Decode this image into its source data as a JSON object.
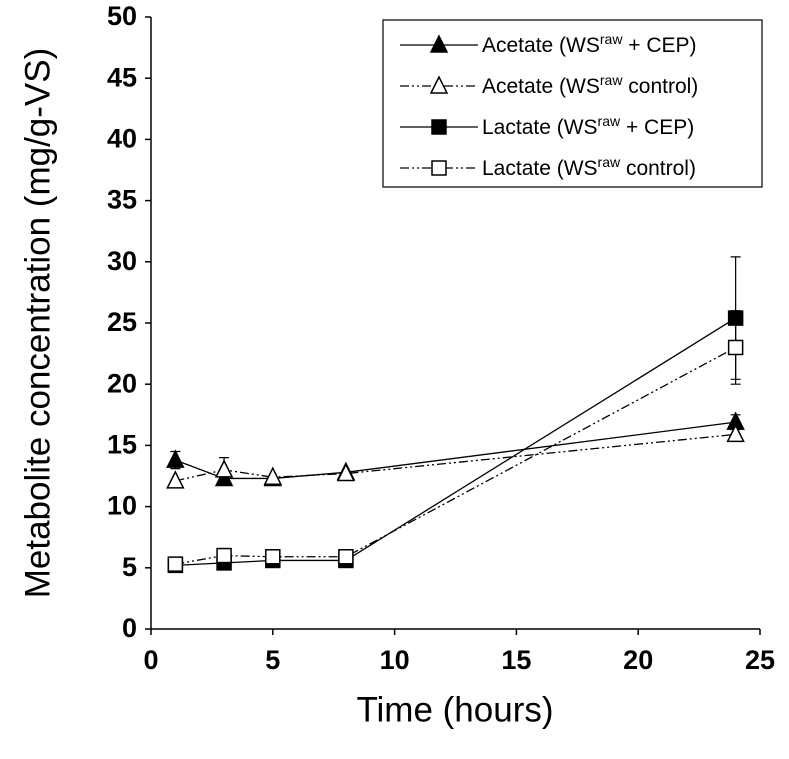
{
  "chart_data": {
    "type": "line",
    "x_label": "Time (hours)",
    "y_label": "Metabolite concentration (mg/g-VS)",
    "xlim": [
      0,
      25
    ],
    "xticks": [
      0,
      5,
      10,
      15,
      20,
      25
    ],
    "ylim": [
      0,
      50
    ],
    "yticks": [
      0,
      5,
      10,
      15,
      20,
      25,
      30,
      35,
      40,
      45,
      50
    ],
    "legend": "top-right",
    "x": [
      1,
      3,
      5,
      8,
      24
    ],
    "series": [
      {
        "name": [
          "Acetate (WS",
          "raw",
          " + CEP)"
        ],
        "color": "#000000",
        "line_style": "solid",
        "marker": "triangle",
        "filled": true,
        "values": [
          13.8,
          12.3,
          12.3,
          12.8,
          16.9
        ],
        "errors": [
          0.7,
          null,
          null,
          null,
          0.6
        ]
      },
      {
        "name": [
          "Acetate (WS",
          "raw",
          " control)"
        ],
        "color": "#000000",
        "line_style": "dashdot",
        "marker": "triangle",
        "filled": false,
        "values": [
          12.1,
          13.0,
          12.4,
          12.7,
          15.9
        ],
        "errors": [
          null,
          1.0,
          null,
          null,
          null
        ]
      },
      {
        "name": [
          "Lactate (WS",
          "raw",
          " + CEP)"
        ],
        "color": "#000000",
        "line_style": "solid",
        "marker": "square",
        "filled": true,
        "values": [
          5.2,
          5.4,
          5.6,
          5.6,
          25.4
        ],
        "errors": [
          null,
          null,
          null,
          null,
          5.0
        ]
      },
      {
        "name": [
          "Lactate (WS",
          "raw",
          " control)"
        ],
        "color": "#000000",
        "line_style": "dashdot",
        "marker": "square",
        "filled": false,
        "values": [
          5.3,
          6.0,
          5.9,
          5.9,
          23.0
        ],
        "errors": [
          null,
          null,
          null,
          null,
          3.0
        ]
      }
    ]
  }
}
